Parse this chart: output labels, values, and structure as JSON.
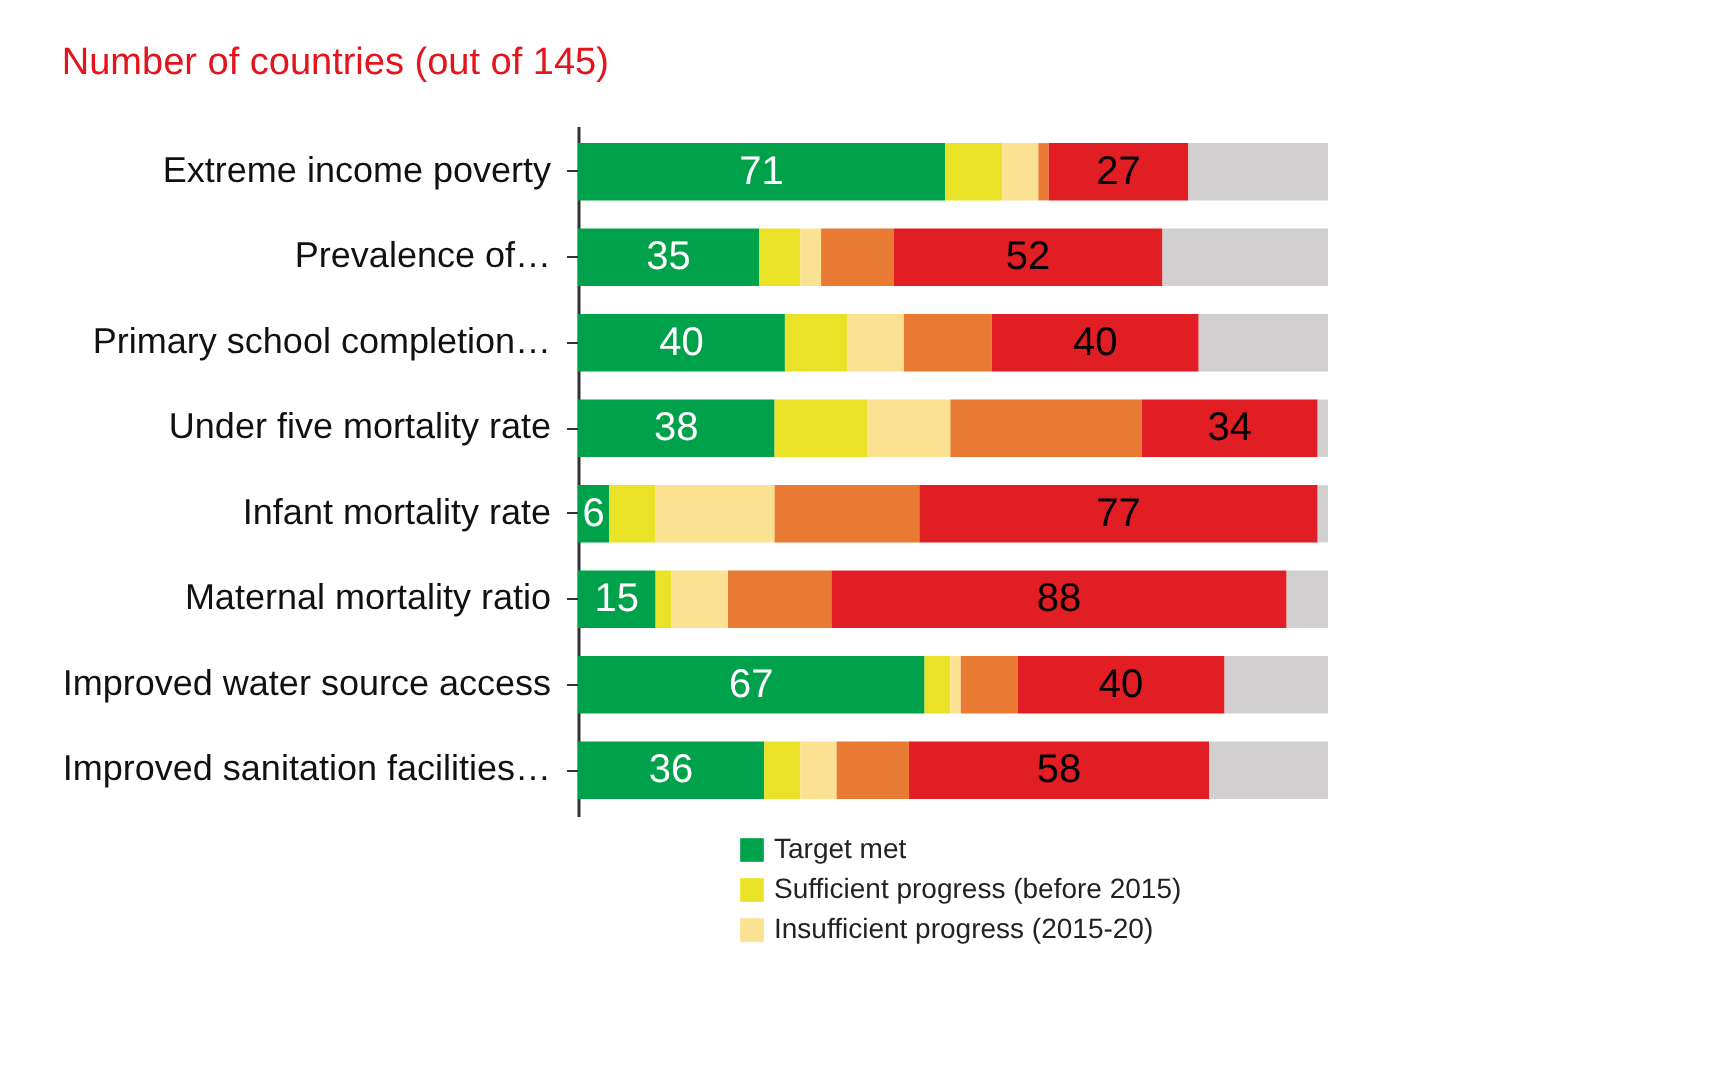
{
  "chart_data": {
    "type": "bar",
    "orientation": "horizontal",
    "stacked": true,
    "title": "Number of countries (out of 145)",
    "categories": [
      "Extreme income poverty",
      "Prevalence of…",
      "Primary school completion…",
      "Under five mortality rate",
      "Infant mortality rate",
      "Maternal mortality ratio",
      "Improved water source access",
      "Improved sanitation facilities…"
    ],
    "xlim": [
      0,
      145
    ],
    "tick_labels": "y",
    "legend": "bottom right",
    "series": [
      {
        "name": "Target met",
        "color": "#00a14b",
        "values": [
          71,
          35,
          40,
          38,
          6,
          15,
          67,
          36
        ],
        "value_labels": [
          "71",
          "35",
          "40",
          "38",
          "6",
          "15",
          "67",
          "36"
        ]
      },
      {
        "name": "Sufficient progress (before 2015)",
        "color": "#e9e227",
        "values": [
          11,
          8,
          12,
          18,
          9,
          3,
          5,
          7
        ]
      },
      {
        "name": "Insufficient progress (2015-20)",
        "color": "#fbe293",
        "values": [
          7,
          4,
          11,
          16,
          23,
          11,
          2,
          7
        ]
      },
      {
        "color": "#e87a33",
        "values": [
          2,
          14,
          17,
          37,
          28,
          20,
          11,
          14
        ]
      },
      {
        "color": "#e11e24",
        "values": [
          27,
          52,
          40,
          34,
          77,
          88,
          40,
          58
        ],
        "value_labels": [
          "27",
          "52",
          "40",
          "34",
          "77",
          "88",
          "40",
          "58"
        ]
      },
      {
        "color": "#d1cfd0",
        "values": [
          27,
          32,
          25,
          2,
          2,
          8,
          20,
          23
        ]
      }
    ]
  }
}
